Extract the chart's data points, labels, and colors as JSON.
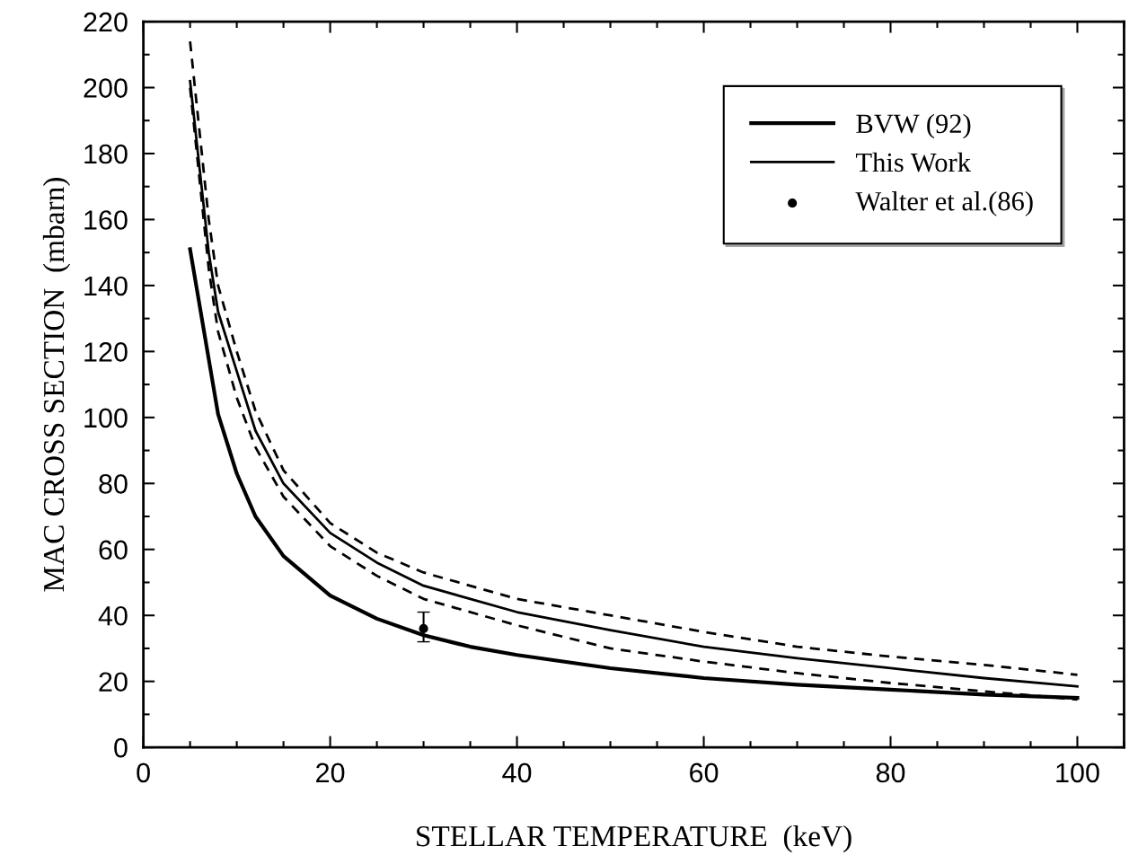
{
  "chart_data": {
    "type": "line",
    "xlabel": "STELLAR TEMPERATURE  (keV)",
    "ylabel": "MAC CROSS SECTION  (mbarn)",
    "xlim": [
      0,
      105
    ],
    "xticks": [
      0,
      20,
      40,
      60,
      80,
      100
    ],
    "ylim": [
      0,
      220
    ],
    "yticks": [
      0,
      20,
      40,
      60,
      80,
      100,
      120,
      140,
      160,
      180,
      200,
      220
    ],
    "grid": false,
    "legend": "top right",
    "series": [
      {
        "name": "BVW (92)",
        "color": "#000000",
        "line_style": "solid",
        "x": [
          5,
          8,
          10,
          12,
          15,
          20,
          25,
          30,
          35,
          40,
          50,
          60,
          70,
          80,
          90,
          100
        ],
        "values": [
          151,
          101,
          83,
          70,
          58,
          46,
          39,
          34,
          30.5,
          28,
          24,
          21,
          19,
          17.5,
          16,
          15
        ]
      },
      {
        "name": "This Work",
        "color": "#000000",
        "line_style": "solid",
        "x": [
          5,
          7,
          8,
          10,
          12,
          15,
          20,
          25,
          30,
          40,
          50,
          60,
          70,
          80,
          90,
          100
        ],
        "values": [
          202,
          150,
          132,
          114,
          96,
          80,
          65,
          56,
          49,
          41,
          35.5,
          30.5,
          27,
          24,
          21,
          18.5
        ]
      },
      {
        "color": "#000000",
        "line_style": "dashed",
        "x": [
          5,
          7,
          8,
          10,
          12,
          15,
          20,
          25,
          30,
          40,
          50,
          60,
          70,
          80,
          90,
          100
        ],
        "values": [
          214,
          160,
          140,
          120,
          102,
          84,
          68,
          59,
          53,
          45,
          40,
          35,
          30.5,
          27.5,
          25,
          22
        ]
      },
      {
        "color": "#000000",
        "line_style": "dashed",
        "x": [
          5,
          7,
          8,
          10,
          12,
          15,
          20,
          25,
          30,
          40,
          50,
          60,
          70,
          80,
          90,
          100
        ],
        "values": [
          200,
          145,
          126,
          106,
          91,
          76,
          61,
          52,
          45,
          37,
          30,
          26,
          22.5,
          19.5,
          17,
          14.5
        ]
      },
      {
        "name": "Walter et al.(86)",
        "type": "scatter",
        "color": "#000000",
        "marker": "circle",
        "x": [
          30
        ],
        "values": [
          36
        ],
        "errors": [
          [
            32,
            41
          ]
        ]
      }
    ]
  }
}
